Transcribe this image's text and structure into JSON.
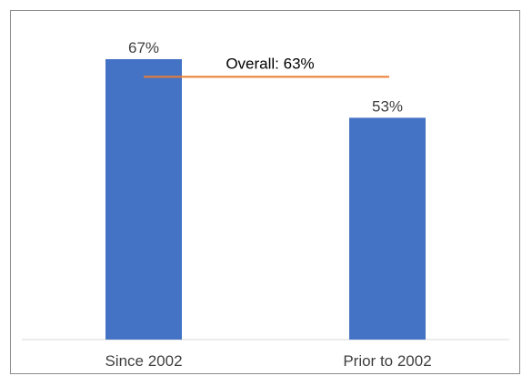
{
  "chart_data": {
    "type": "bar",
    "categories": [
      "Since 2002",
      "Prior to 2002"
    ],
    "values": [
      67,
      53
    ],
    "value_labels": [
      "67%",
      "53%"
    ],
    "ylim": [
      0,
      70
    ],
    "reference_line": {
      "label": "Overall: 63%",
      "value": 63
    },
    "colors": {
      "bar": "#4472C4",
      "reference_line": "#ED7D31",
      "axis": "#d9d9d9"
    },
    "grid": false
  }
}
